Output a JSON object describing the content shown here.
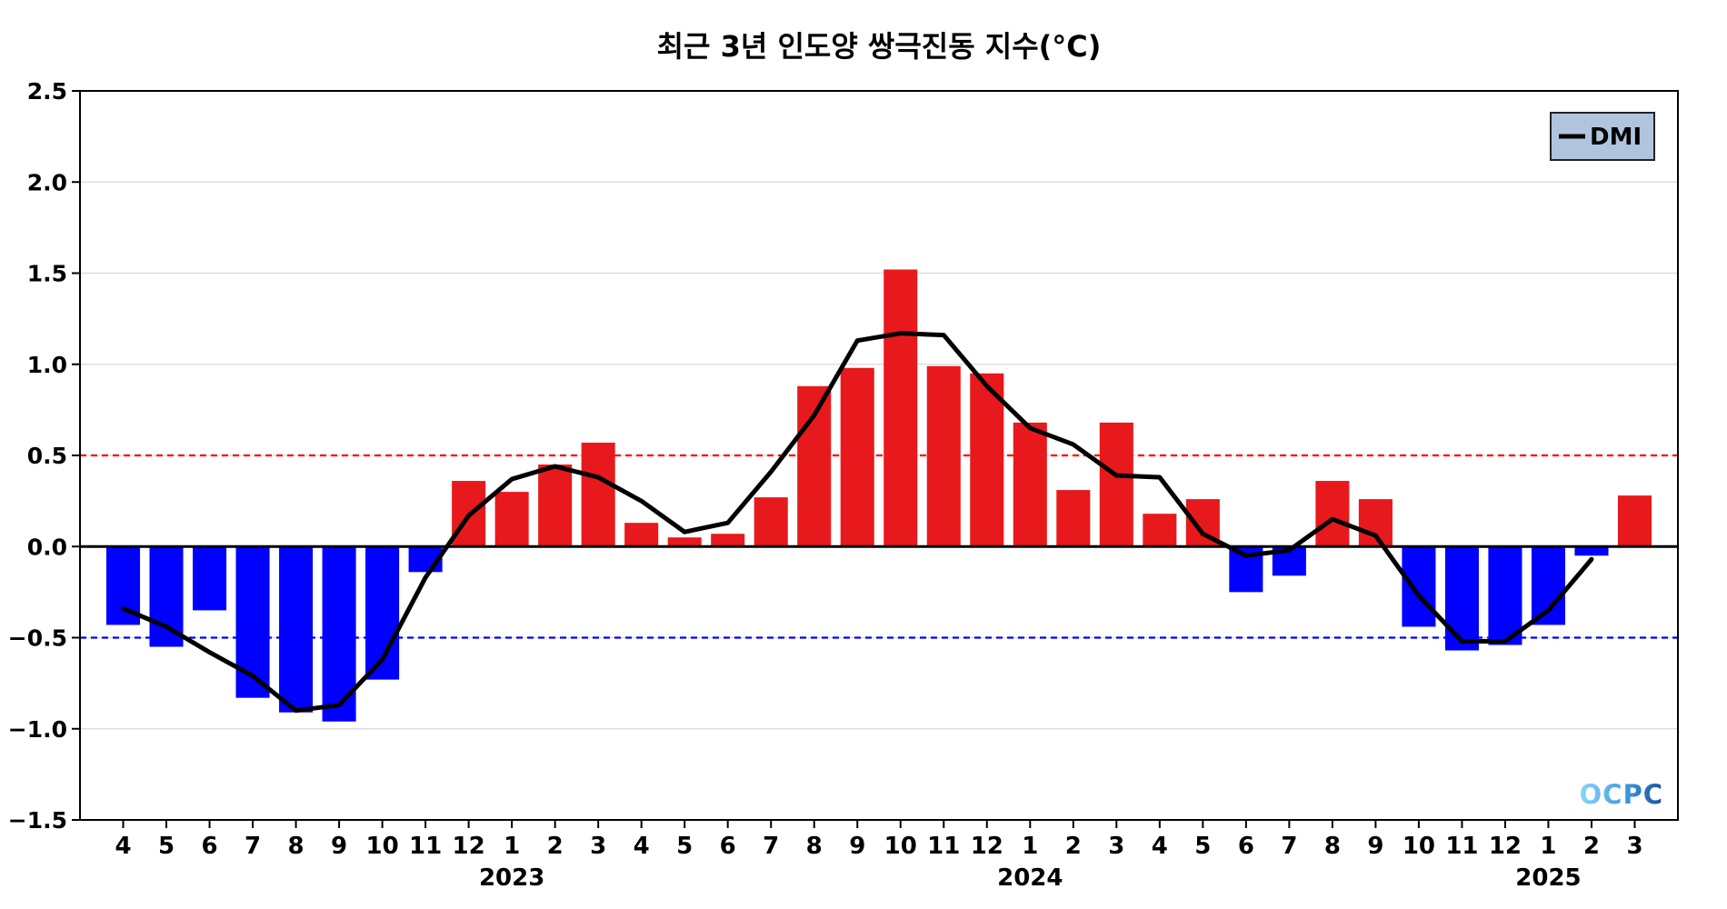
{
  "watermark": "OCPC",
  "chart_data": {
    "type": "bar",
    "title": "최근 3년 인도양 쌍극진동 지수(°C)",
    "xlabel": "",
    "ylabel": "",
    "categories": [
      "4",
      "5",
      "6",
      "7",
      "8",
      "9",
      "10",
      "11",
      "12",
      "1",
      "2",
      "3",
      "4",
      "5",
      "6",
      "7",
      "8",
      "9",
      "10",
      "11",
      "12",
      "1",
      "2",
      "3",
      "4",
      "5",
      "6",
      "7",
      "8",
      "9",
      "10",
      "11",
      "12",
      "1",
      "2",
      "3"
    ],
    "year_labels": [
      {
        "text": "2023",
        "index": 9
      },
      {
        "text": "2024",
        "index": 21
      },
      {
        "text": "2025",
        "index": 33
      }
    ],
    "series": [
      {
        "kind": "bar",
        "values": [
          -0.43,
          -0.55,
          -0.35,
          -0.83,
          -0.91,
          -0.96,
          -0.73,
          -0.14,
          0.36,
          0.3,
          0.45,
          0.57,
          0.13,
          0.05,
          0.07,
          0.27,
          0.88,
          0.98,
          1.52,
          0.99,
          0.95,
          0.68,
          0.31,
          0.68,
          0.18,
          0.26,
          -0.25,
          -0.16,
          0.36,
          0.26,
          -0.44,
          -0.57,
          -0.54,
          -0.43,
          -0.05,
          0.28
        ]
      },
      {
        "kind": "line",
        "name": "DMI",
        "values": [
          -0.34,
          -0.44,
          -0.58,
          -0.71,
          -0.9,
          -0.87,
          -0.62,
          -0.17,
          0.17,
          0.37,
          0.44,
          0.38,
          0.25,
          0.08,
          0.13,
          0.41,
          0.72,
          1.13,
          1.17,
          1.16,
          0.88,
          0.65,
          0.56,
          0.39,
          0.38,
          0.07,
          -0.05,
          -0.02,
          0.15,
          0.06,
          -0.27,
          -0.52,
          -0.52,
          -0.35,
          -0.07,
          null
        ]
      }
    ],
    "ylim": [
      -1.5,
      2.5
    ],
    "yticks": [
      2.5,
      2.0,
      1.5,
      1.0,
      0.5,
      0.0,
      -0.5,
      -1.0,
      -1.5
    ],
    "ytick_labels": [
      "2.5",
      "2.0",
      "1.5",
      "1.0",
      "0.5",
      "0.0",
      "−0.5",
      "−1.0",
      "−1.5"
    ],
    "reference_lines": [
      {
        "y": 0.5,
        "color": "#ff0000",
        "style": "dashed"
      },
      {
        "y": -0.5,
        "color": "#0000ff",
        "style": "dashed"
      },
      {
        "y": 0.0,
        "color": "#000000",
        "style": "solid"
      }
    ],
    "grid": true,
    "legend_placement": "top-right",
    "colors": {
      "positive_bar": "#e8191c",
      "negative_bar": "#0000ff",
      "line": "#000000",
      "legend_background": "#b0c4de",
      "grid": "#d9d9d9"
    }
  }
}
